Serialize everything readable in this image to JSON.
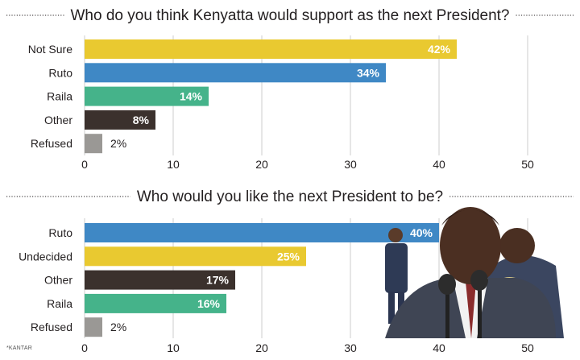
{
  "colors": {
    "not_sure": "#e9c930",
    "ruto": "#3f88c5",
    "raila": "#45b38a",
    "other": "#3b312d",
    "refused": "#9a9895",
    "undecided": "#e9c930",
    "grid": "#cccccc",
    "text": "#231f20"
  },
  "source_note": "*KANTAR",
  "photo": {
    "description_icon": "politicians-photo-icon"
  },
  "chart_data": [
    {
      "type": "bar",
      "orientation": "horizontal",
      "title": "Who do you think Kenyatta would support as the next President?",
      "categories": [
        "Not Sure",
        "Ruto",
        "Raila",
        "Other",
        "Refused"
      ],
      "values": [
        42,
        34,
        14,
        8,
        2
      ],
      "value_labels": [
        "42%",
        "34%",
        "14%",
        "8%",
        "2%"
      ],
      "bar_colors": [
        "#e9c930",
        "#3f88c5",
        "#45b38a",
        "#3b312d",
        "#9a9895"
      ],
      "xlim": [
        0,
        50
      ],
      "xticks": [
        "0",
        "10",
        "20",
        "30",
        "40",
        "50"
      ],
      "grid": true
    },
    {
      "type": "bar",
      "orientation": "horizontal",
      "title": "Who would you like the next President to be?",
      "categories": [
        "Ruto",
        "Undecided",
        "Other",
        "Raila",
        "Refused"
      ],
      "values": [
        40,
        25,
        17,
        16,
        2
      ],
      "value_labels": [
        "40%",
        "25%",
        "17%",
        "16%",
        "2%"
      ],
      "bar_colors": [
        "#3f88c5",
        "#e9c930",
        "#3b312d",
        "#45b38a",
        "#9a9895"
      ],
      "xlim": [
        0,
        50
      ],
      "xticks": [
        "0",
        "10",
        "20",
        "30",
        "40",
        "50"
      ],
      "grid": true
    }
  ]
}
